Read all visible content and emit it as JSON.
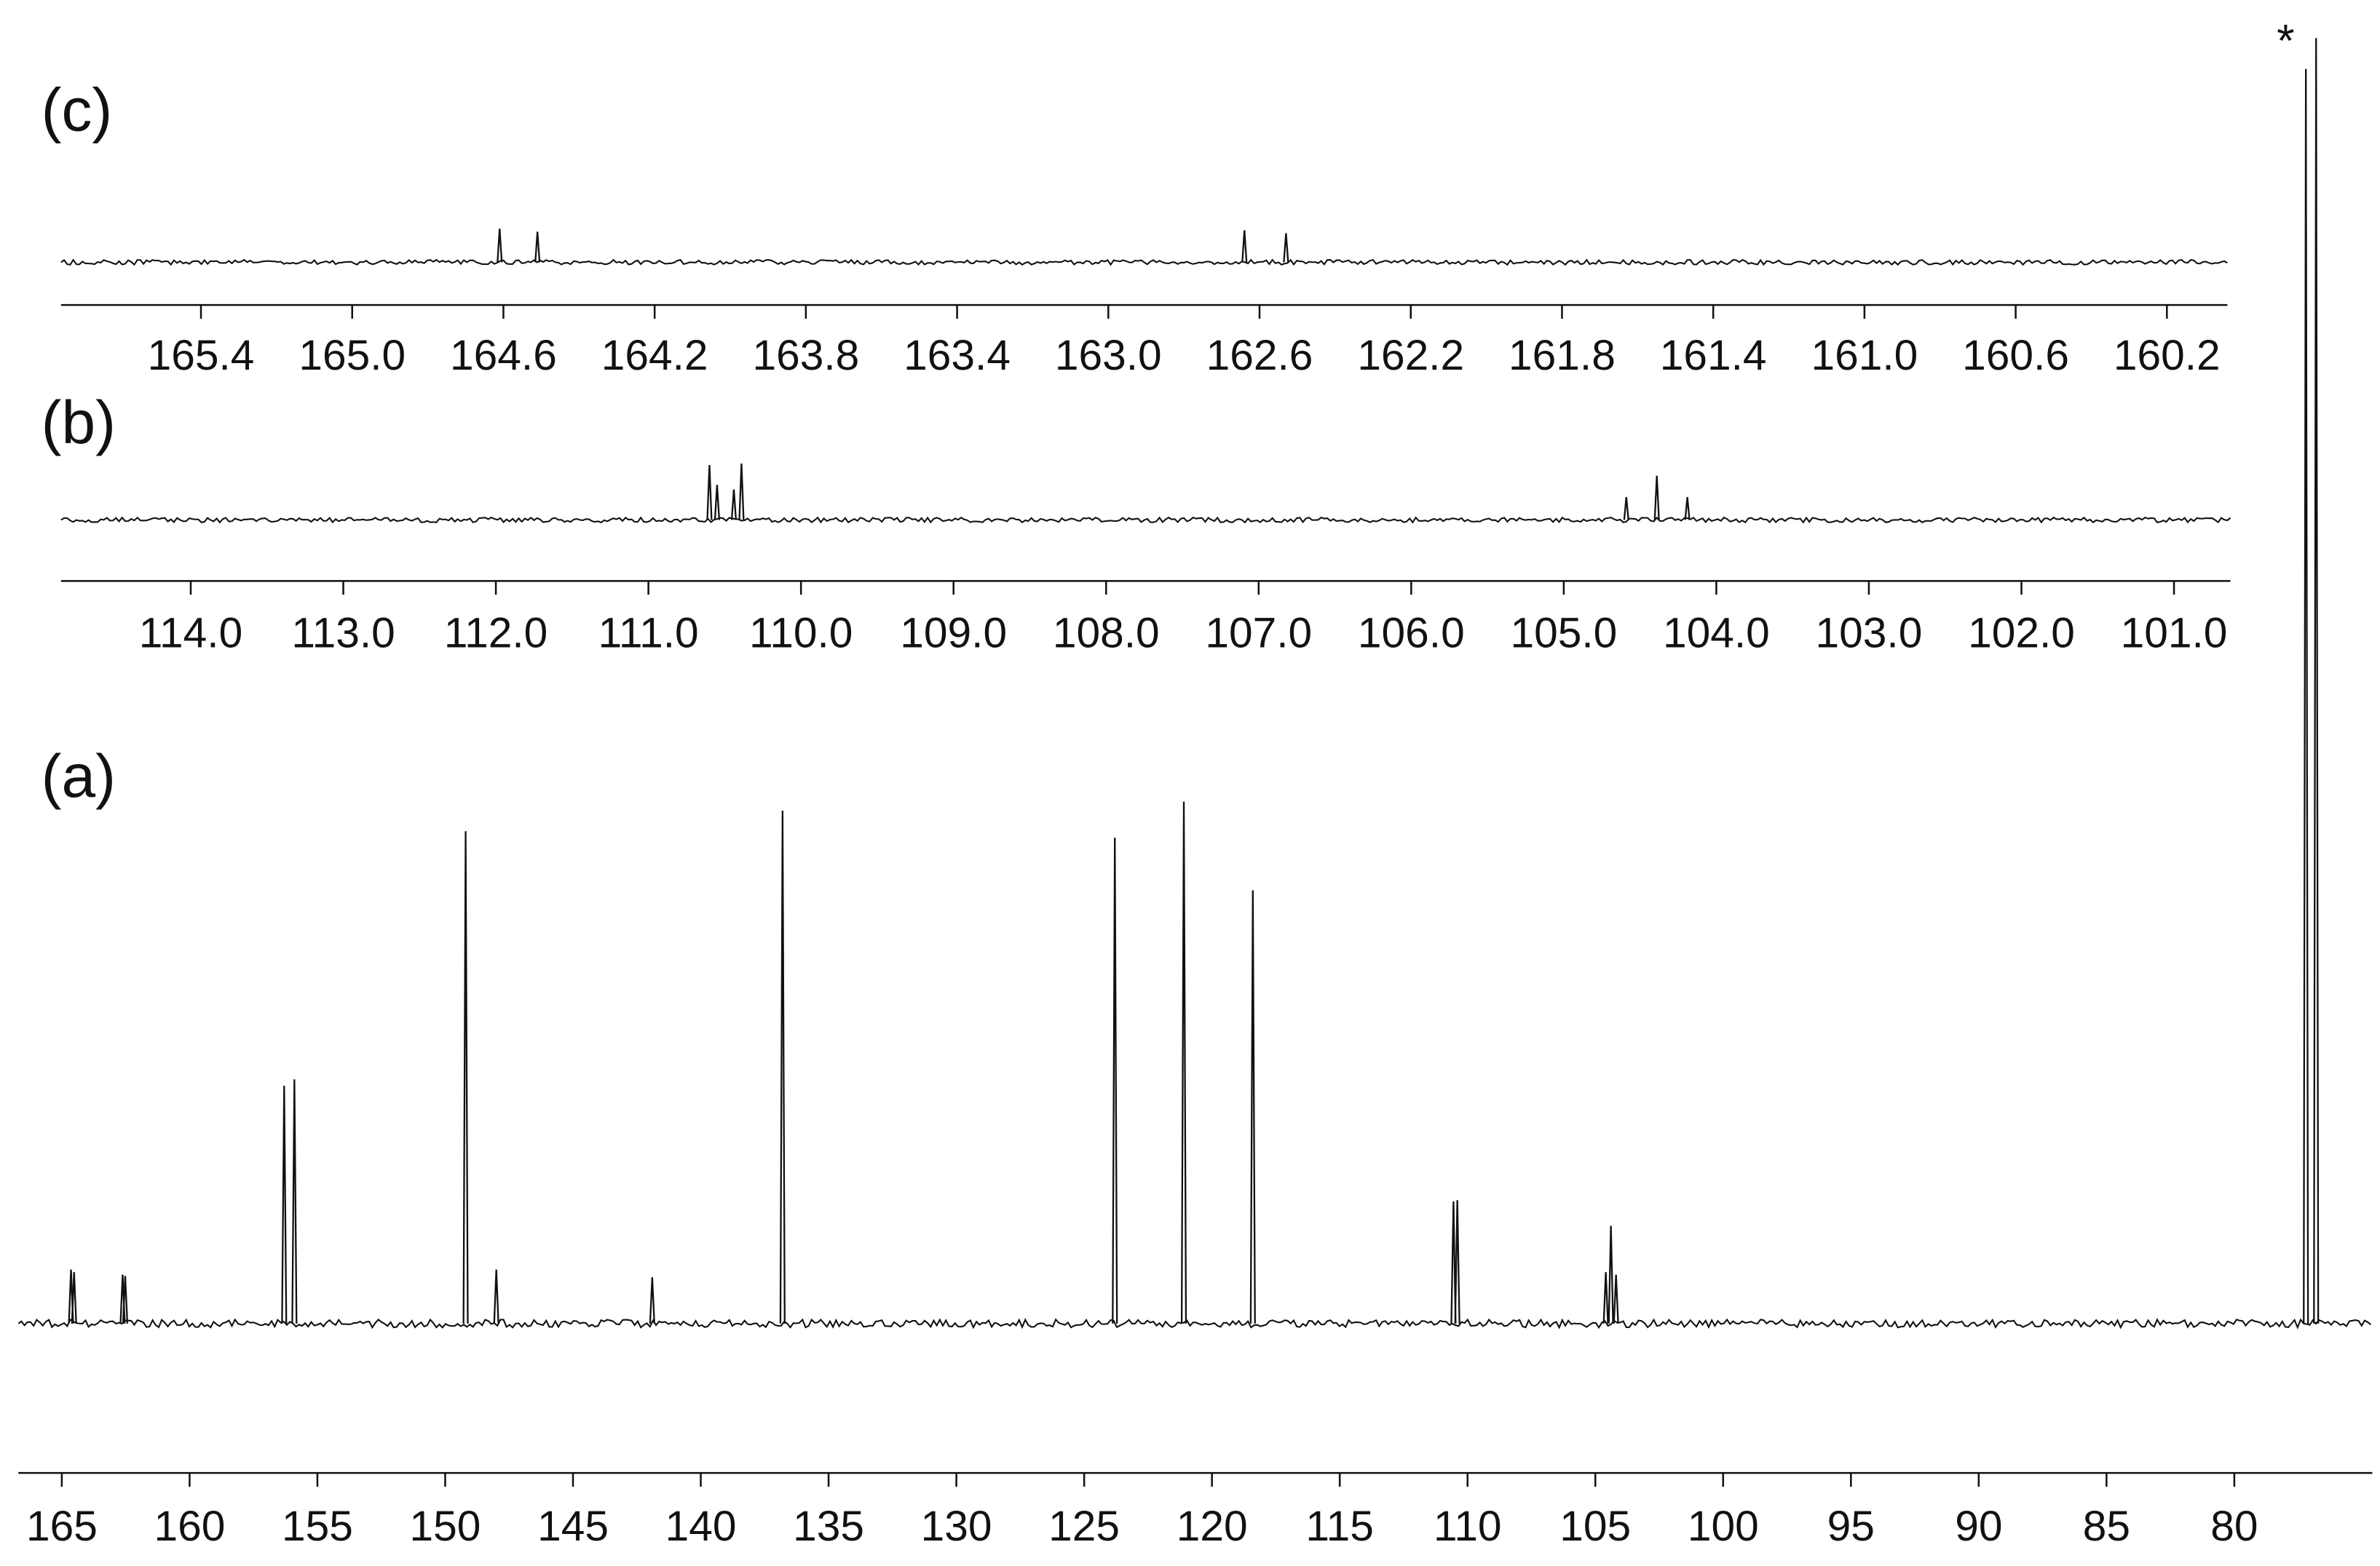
{
  "chart_data": [
    {
      "type": "spectrum",
      "label": "(c)",
      "x": [
        164.61,
        164.51,
        162.64,
        162.53
      ],
      "values": [
        22,
        20,
        21,
        19
      ],
      "xlim": [
        165.77,
        160.04
      ],
      "ylim": [
        0,
        100
      ],
      "xticks": [
        165.4,
        {
          "value": 165,
          "label": "165.0"
        },
        164.6,
        164.2,
        163.8,
        163.4,
        {
          "value": 163,
          "label": "163.0"
        },
        162.6,
        162.2,
        161.8,
        161.4,
        {
          "value": 161,
          "label": "161.0"
        },
        160.6,
        160.2
      ]
    },
    {
      "type": "spectrum",
      "label": "(b)",
      "x": [
        110.6,
        110.55,
        110.44,
        110.39,
        104.59,
        104.39,
        104.19
      ],
      "values": [
        36,
        23,
        20,
        37,
        15,
        29,
        15
      ],
      "xlim": [
        114.85,
        100.63
      ],
      "ylim": [
        0,
        100
      ],
      "xticks": [
        {
          "value": 114,
          "label": "114.0"
        },
        {
          "value": 113,
          "label": "113.0"
        },
        {
          "value": 112,
          "label": "112.0"
        },
        {
          "value": 111,
          "label": "111.0"
        },
        {
          "value": 110,
          "label": "110.0"
        },
        {
          "value": 109,
          "label": "109.0"
        },
        {
          "value": 108,
          "label": "108.0"
        },
        {
          "value": 107,
          "label": "107.0"
        },
        {
          "value": 106,
          "label": "106.0"
        },
        {
          "value": 105,
          "label": "105.0"
        },
        {
          "value": 104,
          "label": "104.0"
        },
        {
          "value": 103,
          "label": "103.0"
        },
        {
          "value": 102,
          "label": "102.0"
        },
        {
          "value": 101,
          "label": "101.0"
        }
      ]
    },
    {
      "type": "spectrum",
      "label": "(a)",
      "annotation": "*",
      "x": [
        164.64,
        164.52,
        162.62,
        162.52,
        156.3,
        155.9,
        149.2,
        148.0,
        141.9,
        136.8,
        123.8,
        121.1,
        118.4,
        110.55,
        110.4,
        104.59,
        104.39,
        104.19,
        77.2,
        76.8
      ],
      "values": [
        4.2,
        4.0,
        3.8,
        3.7,
        18.5,
        19.0,
        38.3,
        4.2,
        3.6,
        39.9,
        37.8,
        40.6,
        33.7,
        9.5,
        9.6,
        4.0,
        7.6,
        3.8,
        97.6,
        100
      ],
      "xlim": [
        166.7,
        74.6
      ],
      "ylim": [
        0,
        100
      ],
      "xticks": [
        165,
        160,
        155,
        150,
        145,
        140,
        135,
        130,
        125,
        120,
        115,
        110,
        105,
        100,
        95,
        90,
        85,
        80
      ]
    }
  ]
}
